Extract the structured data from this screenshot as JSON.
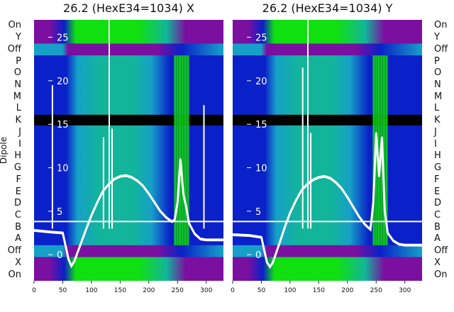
{
  "chart_data": [
    {
      "type": "heatmap",
      "title": "26.2 (HexE34=1034) X",
      "ylabel": "Dipole",
      "rows_top_to_bottom": [
        "On",
        "Y",
        "Off",
        "P",
        "O",
        "N",
        "M",
        "L",
        "K",
        "J",
        "I",
        "H",
        "G",
        "F",
        "E",
        "D",
        "C",
        "B",
        "A",
        "Off",
        "X",
        "On"
      ],
      "x_ticks": [
        0,
        50,
        100,
        150,
        200,
        250,
        300
      ],
      "x_range": [
        0,
        330
      ],
      "overlay_y_ticks": [
        0,
        5,
        10,
        15,
        20,
        25
      ],
      "overlay_y_range": [
        -3,
        27
      ],
      "overlay_series": {
        "x": [
          0,
          30,
          50,
          55,
          60,
          65,
          70,
          80,
          90,
          100,
          110,
          120,
          130,
          140,
          150,
          160,
          170,
          180,
          190,
          200,
          210,
          220,
          230,
          240,
          245,
          250,
          255,
          260,
          265,
          270,
          280,
          290,
          300,
          310,
          330
        ],
        "y": [
          2.8,
          2.6,
          2.5,
          1.0,
          -0.5,
          -1.3,
          -0.8,
          1.0,
          2.8,
          4.5,
          6.0,
          7.3,
          8.1,
          8.7,
          9.0,
          9.1,
          8.9,
          8.5,
          7.9,
          7.0,
          6.0,
          5.0,
          4.3,
          3.8,
          4.0,
          6.0,
          11.0,
          7.0,
          5.5,
          3.6,
          2.4,
          1.8,
          1.7,
          1.7,
          1.7
        ]
      },
      "overlay_spikes": [
        {
          "x": 32,
          "y": 19.5
        },
        {
          "x": 121,
          "y": 13.5
        },
        {
          "x": 131,
          "y": 27
        },
        {
          "x": 136,
          "y": 14.5
        },
        {
          "x": 296,
          "y": 17.2
        }
      ],
      "colors": {
        "purple": "#7b0fa0",
        "blue": "#0a20c8",
        "cyan": "#16a0c8",
        "teal": "#12b59a",
        "green": "#10e010",
        "black": "#000000",
        "overlay": "#ffffff"
      }
    },
    {
      "type": "heatmap",
      "title": "26.2 (HexE34=1034) Y",
      "ylabel": "",
      "rows_top_to_bottom": [
        "On",
        "Y",
        "Off",
        "P",
        "O",
        "N",
        "M",
        "L",
        "K",
        "J",
        "I",
        "H",
        "G",
        "F",
        "E",
        "D",
        "C",
        "B",
        "A",
        "Off",
        "X",
        "On"
      ],
      "x_ticks": [
        0,
        50,
        100,
        150,
        200,
        250,
        300
      ],
      "x_range": [
        0,
        330
      ],
      "overlay_y_ticks": [
        0,
        5,
        10,
        15,
        20,
        25
      ],
      "overlay_y_range": [
        -3,
        27
      ],
      "overlay_series": {
        "x": [
          0,
          30,
          50,
          55,
          60,
          65,
          70,
          80,
          90,
          100,
          110,
          120,
          130,
          140,
          150,
          160,
          170,
          180,
          190,
          200,
          210,
          220,
          230,
          240,
          245,
          250,
          255,
          260,
          265,
          270,
          280,
          290,
          300,
          310,
          330
        ],
        "y": [
          2.3,
          2.2,
          2.0,
          0.5,
          -0.9,
          -1.4,
          -0.9,
          1.0,
          3.0,
          4.8,
          6.2,
          7.4,
          8.1,
          8.6,
          8.9,
          9.0,
          8.8,
          8.3,
          7.6,
          6.6,
          5.5,
          4.4,
          3.5,
          2.9,
          6.0,
          14.0,
          9.0,
          13.5,
          5.0,
          2.5,
          1.6,
          1.2,
          1.1,
          1.1,
          1.1
        ]
      },
      "overlay_spikes": [
        {
          "x": 122,
          "y": 21.5
        },
        {
          "x": 131,
          "y": 27
        },
        {
          "x": 136,
          "y": 14.0
        }
      ],
      "colors": {
        "purple": "#7b0fa0",
        "blue": "#0a20c8",
        "cyan": "#16a0c8",
        "teal": "#12b59a",
        "green": "#10e010",
        "black": "#000000",
        "overlay": "#ffffff"
      }
    }
  ]
}
